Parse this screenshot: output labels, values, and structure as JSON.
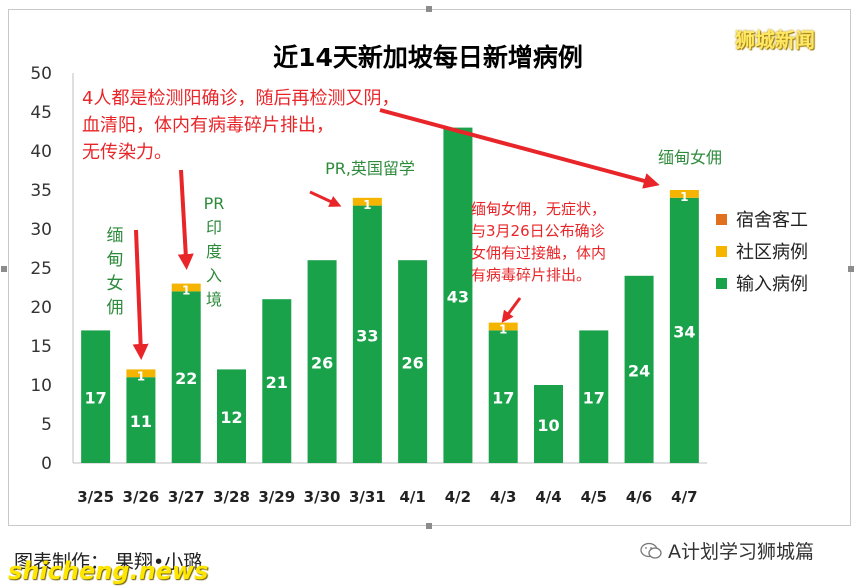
{
  "title": "近14天新加坡每日新增病例",
  "brand": "狮城新闻",
  "footer": "图表制作：  果翔•小璐",
  "watermark": "shicheng.news",
  "wechat_account": "A计划学习狮城篇",
  "icons": {
    "wechat": "wechat-logo-icon"
  },
  "colors": {
    "input": "#1aa24b",
    "community": "#f4b400",
    "dormitory": "#e0701d",
    "annotation_red": "#e8262a",
    "annotation_green": "#2e8b3c"
  },
  "annotations": {
    "a1": [
      "4人都是检测阳确诊，随后再检测又阴，",
      "血清阳，体内有病毒碎片排出，",
      "无传染力。"
    ],
    "a2": [
      "缅",
      "甸",
      "女",
      "佣"
    ],
    "a3": [
      "PR",
      "印",
      "度",
      "入",
      "境"
    ],
    "a4": "PR,英国留学",
    "a5": [
      "缅甸女佣，无症状，",
      "与3月26日公布确诊",
      "女佣有过接触，体内",
      "有病毒碎片排出。"
    ],
    "a6": "缅甸女佣"
  },
  "chart_data": {
    "type": "bar",
    "stacked": true,
    "title": "近14天新加坡每日新增病例",
    "categories": [
      "3/25",
      "3/26",
      "3/27",
      "3/28",
      "3/29",
      "3/30",
      "3/31",
      "4/1",
      "4/2",
      "4/3",
      "4/4",
      "4/5",
      "4/6",
      "4/7"
    ],
    "series": [
      {
        "name": "宿舍客工",
        "color": "#e0701d",
        "values": [
          0,
          0,
          0,
          0,
          0,
          0,
          0,
          0,
          0,
          0,
          0,
          0,
          0,
          0
        ]
      },
      {
        "name": "社区病例",
        "color": "#f4b400",
        "values": [
          0,
          1,
          1,
          0,
          0,
          0,
          1,
          0,
          0,
          1,
          0,
          0,
          0,
          1
        ]
      },
      {
        "name": "输入病例",
        "color": "#1aa24b",
        "values": [
          17,
          11,
          22,
          12,
          21,
          26,
          33,
          26,
          43,
          17,
          10,
          17,
          24,
          34
        ]
      }
    ],
    "ylim": [
      0,
      50
    ],
    "yticks": [
      0,
      5,
      10,
      15,
      20,
      25,
      30,
      35,
      40,
      45,
      50
    ],
    "grid": false,
    "legend": "right"
  }
}
